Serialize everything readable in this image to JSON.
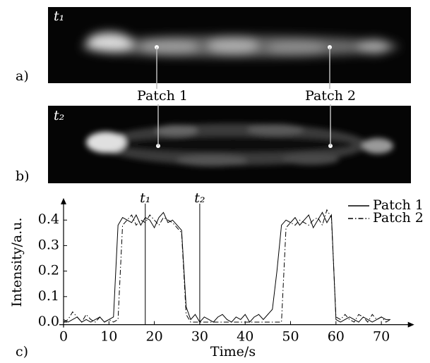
{
  "panels": [
    {
      "label": "a)",
      "time": "t₁"
    },
    {
      "label": "b)",
      "time": "t₂"
    }
  ],
  "patches": [
    "Patch 1",
    "Patch 2"
  ],
  "chart_data": {
    "type": "line",
    "panel_label": "c)",
    "xlabel": "Time/s",
    "ylabel": "Intensity/a.u.",
    "x": [
      0,
      1,
      2,
      3,
      4,
      5,
      6,
      7,
      8,
      9,
      10,
      11,
      12,
      13,
      14,
      15,
      16,
      17,
      18,
      19,
      20,
      21,
      22,
      23,
      24,
      25,
      26,
      27,
      28,
      29,
      30,
      31,
      32,
      33,
      34,
      35,
      36,
      37,
      38,
      39,
      40,
      41,
      42,
      43,
      44,
      45,
      46,
      47,
      48,
      49,
      50,
      51,
      52,
      53,
      54,
      55,
      56,
      57,
      58,
      59,
      60,
      61,
      62,
      63,
      64,
      65,
      66,
      67,
      68,
      69,
      70,
      71,
      72
    ],
    "series": [
      {
        "name": "Patch 1",
        "color": "#000000",
        "dash": "solid",
        "values": [
          0.01,
          0.0,
          0.01,
          0.02,
          0.0,
          0.01,
          0.0,
          0.01,
          0.02,
          0.0,
          0.01,
          0.02,
          0.38,
          0.41,
          0.4,
          0.39,
          0.42,
          0.38,
          0.41,
          0.4,
          0.37,
          0.41,
          0.43,
          0.39,
          0.4,
          0.38,
          0.36,
          0.06,
          0.01,
          0.03,
          0.0,
          0.02,
          0.01,
          0.0,
          0.02,
          0.03,
          0.01,
          0.0,
          0.02,
          0.01,
          0.03,
          0.0,
          0.02,
          0.03,
          0.01,
          0.03,
          0.05,
          0.2,
          0.38,
          0.4,
          0.39,
          0.41,
          0.38,
          0.4,
          0.42,
          0.37,
          0.4,
          0.43,
          0.39,
          0.42,
          0.01,
          0.0,
          0.01,
          0.02,
          0.01,
          0.0,
          0.02,
          0.01,
          0.0,
          0.01,
          0.02,
          0.01,
          0.01
        ]
      },
      {
        "name": "Patch 2",
        "color": "#000000",
        "dash": "dashdot",
        "values": [
          0.0,
          0.01,
          0.04,
          0.02,
          0.0,
          0.03,
          0.01,
          0.0,
          0.02,
          0.0,
          0.01,
          0.0,
          0.01,
          0.38,
          0.4,
          0.42,
          0.38,
          0.4,
          0.39,
          0.42,
          0.4,
          0.38,
          0.41,
          0.4,
          0.39,
          0.37,
          0.35,
          0.03,
          0.0,
          0.0,
          0.0,
          0.0,
          0.0,
          0.0,
          0.0,
          0.0,
          0.0,
          0.0,
          0.0,
          0.0,
          0.0,
          0.0,
          0.0,
          0.0,
          0.0,
          0.0,
          0.0,
          0.0,
          0.0,
          0.37,
          0.39,
          0.38,
          0.4,
          0.39,
          0.38,
          0.4,
          0.41,
          0.38,
          0.44,
          0.41,
          0.02,
          0.01,
          0.03,
          0.01,
          0.0,
          0.03,
          0.02,
          0.0,
          0.03,
          0.01,
          0.02,
          0.0,
          0.01
        ]
      }
    ],
    "markers": [
      {
        "x": 18,
        "label": "t₁"
      },
      {
        "x": 30,
        "label": "t₂"
      }
    ],
    "xlim": [
      0,
      76
    ],
    "ylim": [
      -0.01,
      0.47
    ],
    "xticks": [
      0,
      10,
      20,
      30,
      40,
      50,
      60,
      70
    ],
    "yticks": [
      {
        "value": 0,
        "label": "0.0"
      },
      0.1,
      0.2,
      0.3,
      0.4
    ],
    "legend": "upper right"
  }
}
